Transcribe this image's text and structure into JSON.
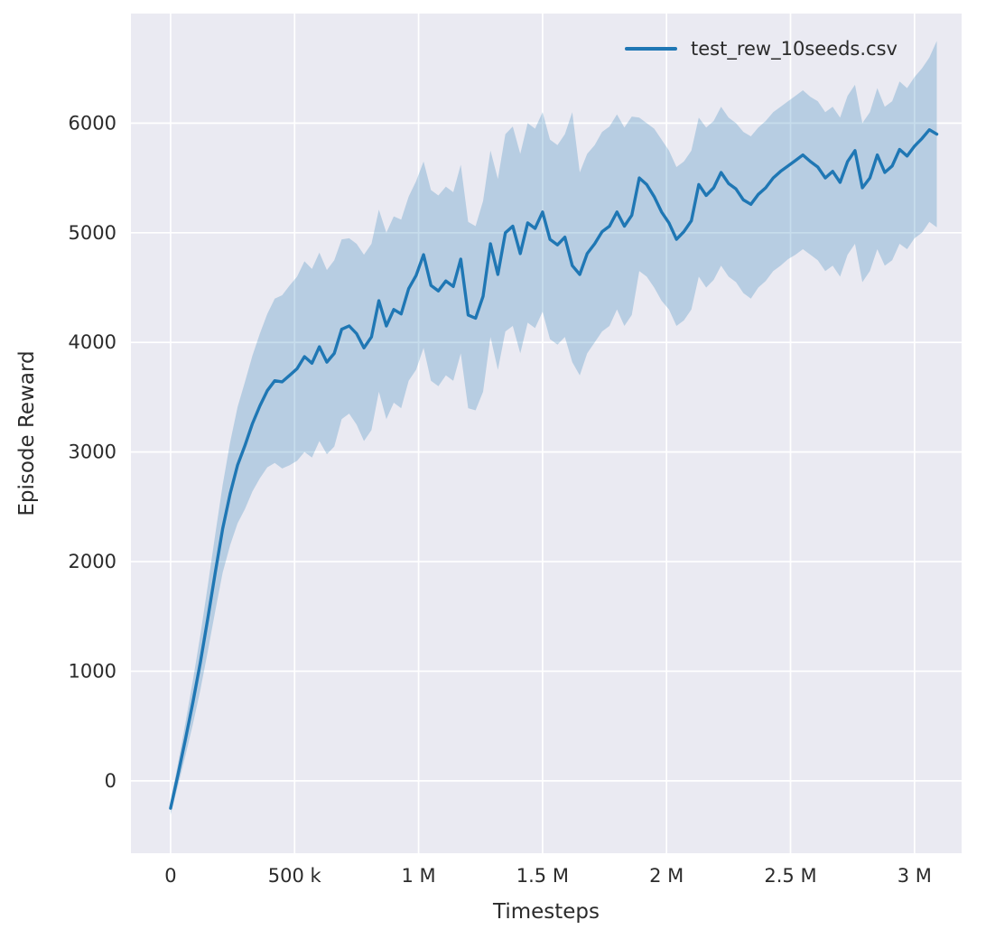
{
  "chart_data": {
    "type": "line",
    "title": "",
    "xlabel": "Timesteps",
    "ylabel": "Episode Reward",
    "xlim": [
      -160000,
      3190000
    ],
    "ylim": [
      -660,
      7000
    ],
    "grid": true,
    "legend_position": "upper right",
    "colors": {
      "line": "#1f77b4",
      "band_fill": "rgba(31,119,180,0.25)",
      "plot_bg": "#eaeaf2",
      "grid": "#ffffff",
      "text": "#2b2b2b"
    },
    "x_ticks": [
      {
        "value": 0,
        "label": "0"
      },
      {
        "value": 500000,
        "label": "500 k"
      },
      {
        "value": 1000000,
        "label": "1 M"
      },
      {
        "value": 1500000,
        "label": "1.5 M"
      },
      {
        "value": 2000000,
        "label": "2 M"
      },
      {
        "value": 2500000,
        "label": "2.5 M"
      },
      {
        "value": 3000000,
        "label": "3 M"
      }
    ],
    "y_ticks": [
      {
        "value": 0,
        "label": "0"
      },
      {
        "value": 1000,
        "label": "1000"
      },
      {
        "value": 2000,
        "label": "2000"
      },
      {
        "value": 3000,
        "label": "3000"
      },
      {
        "value": 4000,
        "label": "4000"
      },
      {
        "value": 5000,
        "label": "5000"
      },
      {
        "value": 6000,
        "label": "6000"
      }
    ],
    "x": {
      "start": 0,
      "step": 30000,
      "count": 104
    },
    "series": [
      {
        "name": "test_rew_10seeds.csv",
        "mean": [
          -250,
          60,
          380,
          720,
          1080,
          1480,
          1900,
          2300,
          2620,
          2880,
          3060,
          3260,
          3420,
          3560,
          3650,
          3640,
          3700,
          3760,
          3870,
          3810,
          3960,
          3820,
          3900,
          4120,
          4150,
          4080,
          3950,
          4050,
          4380,
          4150,
          4300,
          4260,
          4490,
          4610,
          4800,
          4520,
          4470,
          4560,
          4510,
          4760,
          4250,
          4220,
          4420,
          4900,
          4620,
          5000,
          5060,
          4810,
          5090,
          5040,
          5190,
          4940,
          4890,
          4960,
          4700,
          4620,
          4810,
          4900,
          5010,
          5060,
          5190,
          5060,
          5160,
          5500,
          5440,
          5330,
          5190,
          5090,
          4940,
          5010,
          5110,
          5440,
          5340,
          5410,
          5550,
          5450,
          5400,
          5300,
          5260,
          5350,
          5410,
          5500,
          5560,
          5610,
          5660,
          5710,
          5650,
          5600,
          5500,
          5560,
          5460,
          5650,
          5750,
          5410,
          5500,
          5710,
          5550,
          5610,
          5760,
          5700,
          5790,
          5860,
          5940,
          5900
        ],
        "lower": [
          -310,
          -40,
          230,
          520,
          830,
          1180,
          1550,
          1900,
          2150,
          2350,
          2480,
          2640,
          2760,
          2860,
          2900,
          2850,
          2880,
          2920,
          3000,
          2950,
          3100,
          2980,
          3050,
          3300,
          3350,
          3250,
          3100,
          3200,
          3550,
          3300,
          3450,
          3400,
          3650,
          3750,
          3950,
          3650,
          3600,
          3700,
          3650,
          3900,
          3400,
          3380,
          3550,
          4050,
          3750,
          4100,
          4150,
          3900,
          4180,
          4130,
          4280,
          4030,
          3980,
          4050,
          3820,
          3700,
          3900,
          4000,
          4100,
          4150,
          4300,
          4150,
          4250,
          4650,
          4600,
          4500,
          4380,
          4300,
          4150,
          4200,
          4300,
          4600,
          4500,
          4570,
          4700,
          4600,
          4550,
          4450,
          4400,
          4500,
          4560,
          4650,
          4700,
          4760,
          4800,
          4850,
          4800,
          4750,
          4650,
          4700,
          4600,
          4800,
          4900,
          4550,
          4650,
          4850,
          4700,
          4750,
          4900,
          4850,
          4950,
          5000,
          5100,
          5050
        ],
        "upper": [
          -190,
          160,
          530,
          920,
          1330,
          1780,
          2250,
          2700,
          3090,
          3410,
          3640,
          3880,
          4080,
          4260,
          4400,
          4430,
          4520,
          4600,
          4740,
          4670,
          4820,
          4660,
          4750,
          4940,
          4950,
          4900,
          4800,
          4900,
          5210,
          5000,
          5150,
          5120,
          5330,
          5470,
          5650,
          5390,
          5340,
          5420,
          5370,
          5620,
          5100,
          5060,
          5290,
          5750,
          5490,
          5900,
          5970,
          5720,
          6000,
          5950,
          6100,
          5850,
          5800,
          5900,
          6100,
          5550,
          5720,
          5800,
          5920,
          5970,
          6080,
          5960,
          6060,
          6050,
          6000,
          5950,
          5850,
          5750,
          5600,
          5650,
          5750,
          6050,
          5960,
          6020,
          6150,
          6050,
          6000,
          5920,
          5880,
          5960,
          6020,
          6100,
          6150,
          6200,
          6250,
          6300,
          6240,
          6200,
          6100,
          6150,
          6050,
          6250,
          6350,
          6000,
          6100,
          6320,
          6150,
          6200,
          6380,
          6320,
          6420,
          6500,
          6600,
          6750
        ]
      }
    ]
  }
}
